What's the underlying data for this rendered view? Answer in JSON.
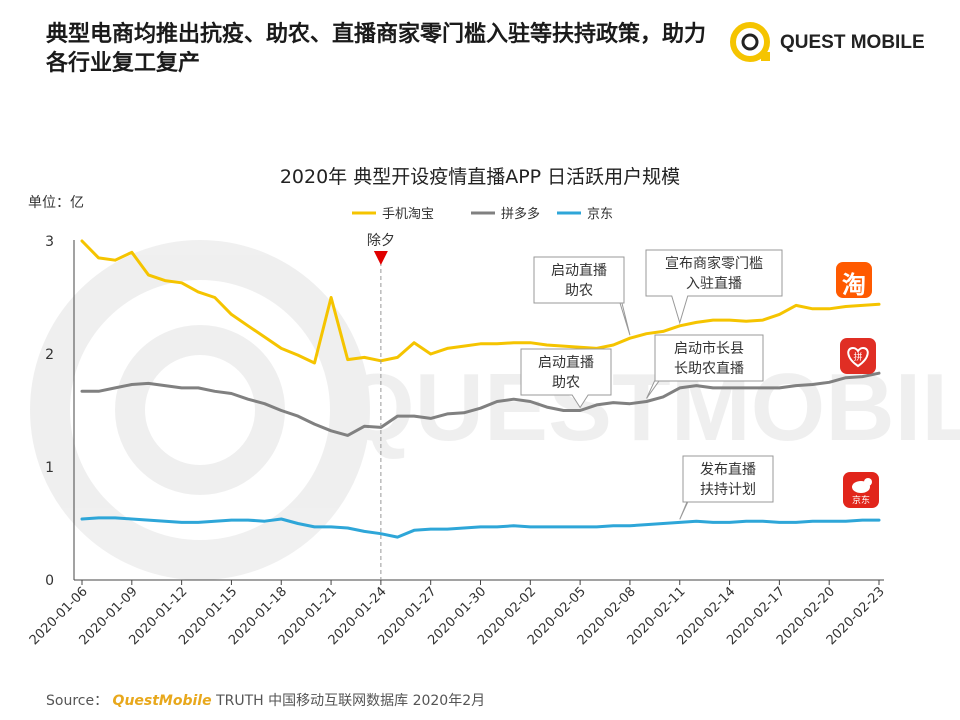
{
  "headline": "典型电商均推出抗疫、助农、直播商家零门槛入驻等扶持政策，助力各行业复工复产",
  "logo": {
    "text": "QUEST MOBILE",
    "color": "#f5c400"
  },
  "watermark": "QUESTMOBILE",
  "unit_label": "单位：亿",
  "footer": {
    "prefix": "Source：",
    "brand": "QuestMobile",
    "rest": " TRUTH 中国移动互联网数据库 2020年2月"
  },
  "app_icons": {
    "taobao": "淘",
    "pdd": "拼",
    "jd": "京东"
  },
  "chart_data": {
    "type": "line",
    "title": "2020年 典型开设疫情直播APP 日活跃用户规模",
    "ylabel": "单位：亿",
    "ylim": [
      0,
      3
    ],
    "yticks": [
      0,
      1,
      2,
      3
    ],
    "grid": false,
    "legend_position": "top-center",
    "x": [
      "2020-01-06",
      "2020-01-07",
      "2020-01-08",
      "2020-01-09",
      "2020-01-10",
      "2020-01-11",
      "2020-01-12",
      "2020-01-13",
      "2020-01-14",
      "2020-01-15",
      "2020-01-16",
      "2020-01-17",
      "2020-01-18",
      "2020-01-19",
      "2020-01-20",
      "2020-01-21",
      "2020-01-22",
      "2020-01-23",
      "2020-01-24",
      "2020-01-25",
      "2020-01-26",
      "2020-01-27",
      "2020-01-28",
      "2020-01-29",
      "2020-01-30",
      "2020-01-31",
      "2020-02-01",
      "2020-02-02",
      "2020-02-03",
      "2020-02-04",
      "2020-02-05",
      "2020-02-06",
      "2020-02-07",
      "2020-02-08",
      "2020-02-09",
      "2020-02-10",
      "2020-02-11",
      "2020-02-12",
      "2020-02-13",
      "2020-02-14",
      "2020-02-15",
      "2020-02-16",
      "2020-02-17",
      "2020-02-18",
      "2020-02-19",
      "2020-02-20",
      "2020-02-21",
      "2020-02-22",
      "2020-02-23"
    ],
    "xticks": [
      "2020-01-06",
      "2020-01-09",
      "2020-01-12",
      "2020-01-15",
      "2020-01-18",
      "2020-01-21",
      "2020-01-24",
      "2020-01-27",
      "2020-01-30",
      "2020-02-02",
      "2020-02-05",
      "2020-02-08",
      "2020-02-11",
      "2020-02-14",
      "2020-02-17",
      "2020-02-20",
      "2020-02-23"
    ],
    "series": [
      {
        "name": "手机淘宝",
        "color": "#f5c400",
        "values": [
          3.0,
          2.85,
          2.83,
          2.9,
          2.7,
          2.65,
          2.63,
          2.55,
          2.5,
          2.35,
          2.25,
          2.15,
          2.05,
          1.99,
          1.92,
          2.5,
          1.95,
          1.97,
          1.94,
          1.97,
          2.1,
          2.0,
          2.05,
          2.07,
          2.09,
          2.09,
          2.1,
          2.1,
          2.08,
          2.07,
          2.06,
          2.05,
          2.08,
          2.14,
          2.18,
          2.2,
          2.25,
          2.28,
          2.3,
          2.3,
          2.29,
          2.3,
          2.35,
          2.43,
          2.4,
          2.4,
          2.42,
          2.43,
          2.44
        ]
      },
      {
        "name": "拼多多",
        "color": "#808080",
        "values": [
          1.67,
          1.67,
          1.7,
          1.73,
          1.74,
          1.72,
          1.7,
          1.7,
          1.67,
          1.65,
          1.6,
          1.56,
          1.5,
          1.45,
          1.38,
          1.32,
          1.28,
          1.36,
          1.35,
          1.45,
          1.45,
          1.43,
          1.47,
          1.48,
          1.52,
          1.58,
          1.6,
          1.58,
          1.53,
          1.5,
          1.5,
          1.55,
          1.57,
          1.56,
          1.58,
          1.62,
          1.7,
          1.72,
          1.7,
          1.7,
          1.7,
          1.7,
          1.7,
          1.72,
          1.73,
          1.75,
          1.79,
          1.8,
          1.83
        ]
      },
      {
        "name": "京东",
        "color": "#2ea6d8",
        "values": [
          0.54,
          0.55,
          0.55,
          0.54,
          0.53,
          0.52,
          0.51,
          0.51,
          0.52,
          0.53,
          0.53,
          0.52,
          0.54,
          0.5,
          0.47,
          0.47,
          0.46,
          0.43,
          0.41,
          0.38,
          0.44,
          0.45,
          0.45,
          0.46,
          0.47,
          0.47,
          0.48,
          0.47,
          0.47,
          0.47,
          0.47,
          0.47,
          0.48,
          0.48,
          0.49,
          0.5,
          0.51,
          0.52,
          0.51,
          0.51,
          0.52,
          0.52,
          0.51,
          0.51,
          0.52,
          0.52,
          0.52,
          0.53,
          0.53
        ]
      }
    ],
    "annotations": [
      {
        "lines": [
          "除夕"
        ],
        "x": "2020-01-24",
        "style": "marker"
      },
      {
        "lines": [
          "启动直播",
          "助农"
        ],
        "x": "2020-02-08",
        "series": "手机淘宝",
        "style": "callout"
      },
      {
        "lines": [
          "宣布商家零门槛",
          "入驻直播"
        ],
        "x": "2020-02-11",
        "series": "手机淘宝",
        "style": "callout"
      },
      {
        "lines": [
          "启动直播",
          "助农"
        ],
        "x": "2020-02-05",
        "series": "拼多多",
        "style": "callout"
      },
      {
        "lines": [
          "启动市长县",
          "长助农直播"
        ],
        "x": "2020-02-09",
        "series": "拼多多",
        "style": "callout"
      },
      {
        "lines": [
          "发布直播",
          "扶持计划"
        ],
        "x": "2020-02-11",
        "series": "京东",
        "style": "callout"
      }
    ]
  }
}
